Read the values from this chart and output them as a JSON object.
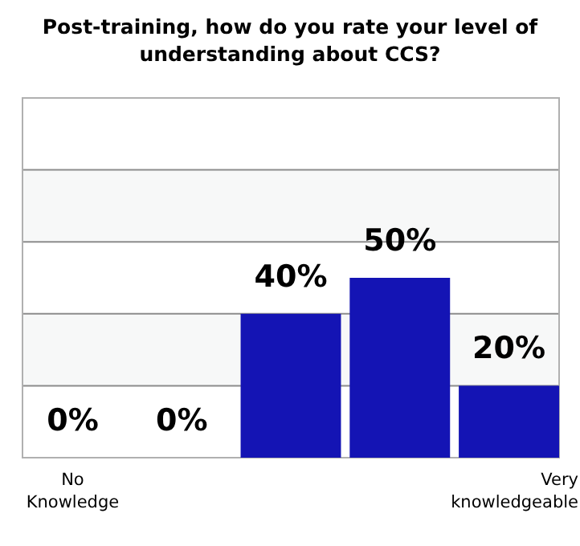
{
  "chart_data": {
    "type": "bar",
    "title": "Post-training, how do you rate your level of understanding about CCS?",
    "categories": [
      "No Knowledge",
      null,
      null,
      null,
      "Very knowledgeable"
    ],
    "values": [
      0,
      0,
      40,
      50,
      20
    ],
    "color": "#1414b4",
    "value_labels": [
      "0%",
      "0%",
      "40%",
      "50%",
      "20%"
    ],
    "ylim": [
      0,
      100
    ],
    "yticks": [
      {
        "value": 0,
        "label": null
      },
      {
        "value": 20,
        "label": null
      },
      {
        "value": 40,
        "label": null
      },
      {
        "value": 60,
        "label": null
      },
      {
        "value": 80,
        "label": null
      },
      {
        "value": 100,
        "label": null
      }
    ],
    "grid": "y",
    "tick_labels": "x"
  }
}
